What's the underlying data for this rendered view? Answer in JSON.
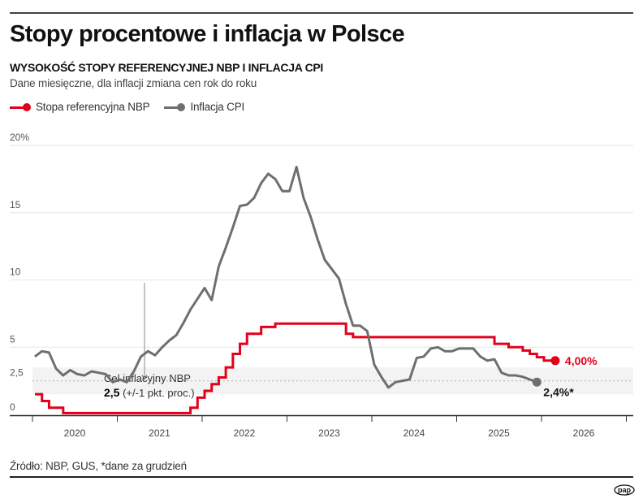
{
  "header": {
    "title": "Stopy procentowe i inflacja w Polsce",
    "subtitle": "WYSOKOŚĆ STOPY REFERENCYJNEJ NBP I INFLACJA CPI",
    "description": "Dane miesięczne, dla inflacji zmiana cen rok do roku"
  },
  "footer": {
    "source": "Źródło: NBP, GUS, *dane za grudzień",
    "logo_text": "pap"
  },
  "chart_data": {
    "type": "line",
    "y_tick_labels": [
      "0",
      "2,5",
      "5",
      "10",
      "15",
      "20%"
    ],
    "y_ticks": [
      0,
      2.5,
      5,
      10,
      15,
      20
    ],
    "ylim": [
      0,
      20
    ],
    "x_tick_labels": [
      "2020",
      "2021",
      "2022",
      "2023",
      "2024",
      "2025",
      "2026"
    ],
    "x_start": "2020-01",
    "grid": true,
    "legend_placement": "top-left",
    "target_band": {
      "center": 2.5,
      "low": 1.5,
      "high": 3.5
    },
    "annotation": {
      "line1": "Cel inflacyjny NBP",
      "bold": "2,5",
      "rest": " (+/-1 pkt. proc.)"
    },
    "series": [
      {
        "name": "Stopa referencyjna NBP",
        "color": "#e2001a",
        "step": true,
        "end_label": "4,00%",
        "values": [
          1.5,
          1.0,
          0.5,
          0.5,
          0.1,
          0.1,
          0.1,
          0.1,
          0.1,
          0.1,
          0.1,
          0.1,
          0.1,
          0.1,
          0.1,
          0.1,
          0.1,
          0.1,
          0.1,
          0.1,
          0.1,
          0.1,
          0.5,
          1.25,
          1.75,
          2.25,
          2.75,
          3.5,
          4.5,
          5.25,
          6.0,
          6.0,
          6.5,
          6.5,
          6.75,
          6.75,
          6.75,
          6.75,
          6.75,
          6.75,
          6.75,
          6.75,
          6.75,
          6.75,
          6.0,
          5.75,
          5.75,
          5.75,
          5.75,
          5.75,
          5.75,
          5.75,
          5.75,
          5.75,
          5.75,
          5.75,
          5.75,
          5.75,
          5.75,
          5.75,
          5.75,
          5.75,
          5.75,
          5.75,
          5.75,
          5.25,
          5.25,
          5.0,
          5.0,
          4.75,
          4.5,
          4.25,
          4.0,
          4.0
        ]
      },
      {
        "name": "Inflacja CPI",
        "color": "#6f6f6f",
        "end_label": "2,4%*",
        "values": [
          4.3,
          4.7,
          4.6,
          3.4,
          2.9,
          3.3,
          3.0,
          2.9,
          3.2,
          3.1,
          3.0,
          2.4,
          2.6,
          2.4,
          3.2,
          4.3,
          4.7,
          4.4,
          5.0,
          5.5,
          5.9,
          6.8,
          7.8,
          8.6,
          9.4,
          8.5,
          11.0,
          12.4,
          13.9,
          15.5,
          15.6,
          16.1,
          17.2,
          17.9,
          17.5,
          16.6,
          16.6,
          18.4,
          16.1,
          14.7,
          13.0,
          11.5,
          10.8,
          10.1,
          8.2,
          6.6,
          6.6,
          6.2,
          3.7,
          2.8,
          2.0,
          2.4,
          2.5,
          2.6,
          4.2,
          4.3,
          4.9,
          5.0,
          4.7,
          4.7,
          4.9,
          4.9,
          4.9,
          4.3,
          4.0,
          4.1,
          3.1,
          2.9,
          2.9,
          2.8,
          2.6,
          2.4
        ]
      }
    ]
  }
}
